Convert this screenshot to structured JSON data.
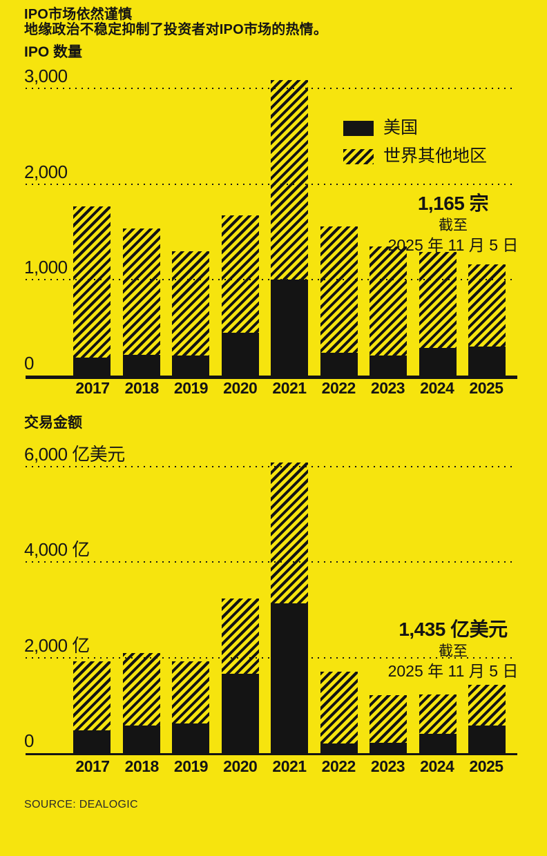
{
  "header": {
    "title": "IPO市场依然谨慎",
    "subtitle": "地缘政治不稳定抑制了投资者对IPO市场的热情。"
  },
  "colors": {
    "background": "#f6e40e",
    "ink": "#141414"
  },
  "legend": {
    "items": [
      {
        "label": "美国",
        "swatch": "solid-black"
      },
      {
        "label": "世界其他地区",
        "swatch": "diagonal-hatch"
      }
    ],
    "position": "top-right-inside-first-chart"
  },
  "source": "SOURCE: DEALOGIC",
  "chart_data": [
    {
      "type": "bar",
      "stacked": true,
      "title": "IPO 数量",
      "categories": [
        "2017",
        "2018",
        "2019",
        "2020",
        "2021",
        "2022",
        "2023",
        "2024",
        "2025"
      ],
      "series": [
        {
          "name": "美国",
          "style": "solid-black",
          "values": [
            190,
            220,
            210,
            450,
            1000,
            240,
            210,
            290,
            300
          ]
        },
        {
          "name": "世界其他地区",
          "style": "diagonal-hatch",
          "values": [
            1575,
            1320,
            1090,
            1220,
            2090,
            1320,
            1140,
            1000,
            865
          ]
        }
      ],
      "totals": [
        1765,
        1540,
        1300,
        1670,
        3090,
        1560,
        1350,
        1290,
        1165
      ],
      "ylim": [
        0,
        3000
      ],
      "yticks": [
        {
          "value": 0,
          "label": "0"
        },
        {
          "value": 1000,
          "label": "1,000"
        },
        {
          "value": 2000,
          "label": "2,000"
        },
        {
          "value": 3000,
          "label": "3,000"
        }
      ],
      "grid": "horizontal-dotted",
      "annotation": {
        "headline": "1,165 宗",
        "line2": "截至",
        "line3": "2025 年 11 月 5 日"
      }
    },
    {
      "type": "bar",
      "stacked": true,
      "title": "交易金额",
      "categories": [
        "2017",
        "2018",
        "2019",
        "2020",
        "2021",
        "2022",
        "2023",
        "2024",
        "2025"
      ],
      "series": [
        {
          "name": "美国",
          "style": "solid-black",
          "values": [
            475,
            580,
            620,
            1670,
            3140,
            200,
            220,
            410,
            585
          ]
        },
        {
          "name": "世界其他地区",
          "style": "diagonal-hatch",
          "values": [
            1450,
            1520,
            1305,
            1565,
            2950,
            1510,
            995,
            825,
            850
          ]
        }
      ],
      "totals": [
        1925,
        2100,
        1925,
        3235,
        6090,
        1710,
        1215,
        1235,
        1435
      ],
      "ylim": [
        0,
        6000
      ],
      "yticks": [
        {
          "value": 0,
          "label": "0"
        },
        {
          "value": 2000,
          "label": "2,000 亿"
        },
        {
          "value": 4000,
          "label": "4,000 亿"
        },
        {
          "value": 6000,
          "label": "6,000 亿美元"
        }
      ],
      "grid": "horizontal-dotted",
      "annotation": {
        "headline": "1,435 亿美元",
        "line2": "截至",
        "line3": "2025 年 11 月 5 日"
      }
    }
  ]
}
